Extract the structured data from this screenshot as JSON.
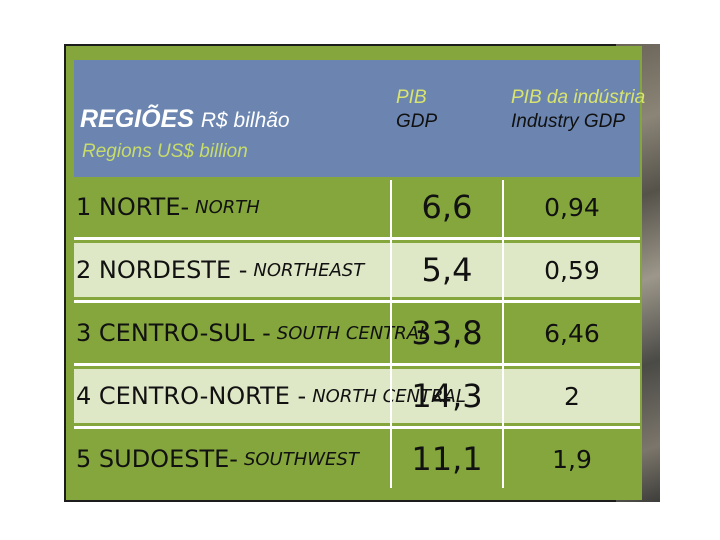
{
  "header": {
    "title_pt": "REGIÕES",
    "title_unit_pt": "R$ bilhão",
    "title_en": "Regions US$ billion",
    "col_gdp_pt": "PIB",
    "col_gdp_en": "GDP",
    "col_ind_pt": "PIB da indústria",
    "col_ind_en": "Industry GDP"
  },
  "rows": [
    {
      "name_pt": "1 NORTE-",
      "name_en": "NORTH",
      "gdp": "6,6",
      "industry_gdp": "0,94"
    },
    {
      "name_pt": "2 NORDESTE -",
      "name_en": "NORTHEAST",
      "gdp": "5,4",
      "industry_gdp": "0,59"
    },
    {
      "name_pt": "3 CENTRO-SUL -",
      "name_en": "SOUTH CENTRAL",
      "gdp": "33,8",
      "industry_gdp": "6,46"
    },
    {
      "name_pt": "4 CENTRO-NORTE -",
      "name_en": "NORTH CENTRAL",
      "gdp": "14,3",
      "industry_gdp": "2"
    },
    {
      "name_pt": "5 SUDOESTE-",
      "name_en": "SOUTHWEST",
      "gdp": "11,1",
      "industry_gdp": "1,9"
    }
  ],
  "colors": {
    "header_blue": "#6b85b0",
    "row_green": "#84a63c",
    "row_light": "#dfe8c6"
  }
}
